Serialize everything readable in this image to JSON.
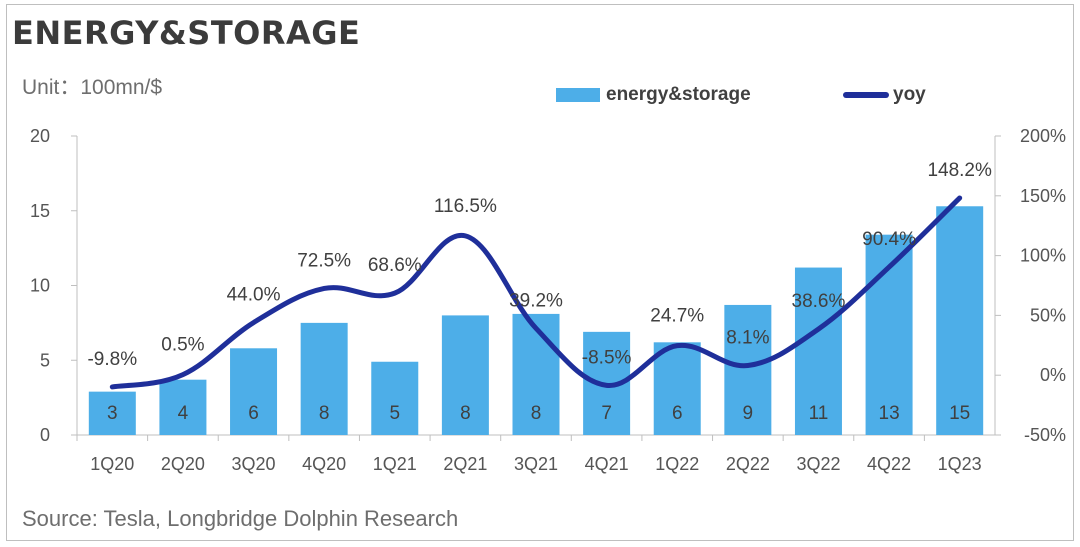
{
  "title": "ENERGY&STORAGE",
  "unit_label": "Unit：100mn/$",
  "source": "Source: Tesla, Longbridge Dolphin Research",
  "legend": {
    "bar": "energy&storage",
    "line": "yoy"
  },
  "colors": {
    "bar": "#4daee8",
    "line": "#1f2f9a",
    "axis": "#bfbfbf",
    "text": "#404040"
  },
  "chart_data": {
    "type": "bar",
    "categories": [
      "1Q20",
      "2Q20",
      "3Q20",
      "4Q20",
      "1Q21",
      "2Q21",
      "3Q21",
      "4Q21",
      "1Q22",
      "2Q22",
      "3Q22",
      "4Q22",
      "1Q23"
    ],
    "series": [
      {
        "name": "energy&storage",
        "type": "bar",
        "axis": "left",
        "values": [
          2.9,
          3.7,
          5.8,
          7.5,
          4.9,
          8.0,
          8.1,
          6.9,
          6.2,
          8.7,
          11.2,
          13.4,
          15.3
        ],
        "labels": [
          "3",
          "4",
          "6",
          "8",
          "5",
          "8",
          "8",
          "7",
          "6",
          "9",
          "11",
          "13",
          "15"
        ]
      },
      {
        "name": "yoy",
        "type": "line",
        "axis": "right",
        "values": [
          -9.8,
          0.5,
          44.0,
          72.5,
          68.6,
          116.5,
          39.2,
          -8.5,
          24.7,
          8.1,
          38.6,
          90.4,
          148.2
        ],
        "labels": [
          "-9.8%",
          "0.5%",
          "44.0%",
          "72.5%",
          "68.6%",
          "116.5%",
          "39.2%",
          "-8.5%",
          "24.7%",
          "8.1%",
          "38.6%",
          "90.4%",
          "148.2%"
        ]
      }
    ],
    "y_left": {
      "ticks": [
        "0",
        "5",
        "10",
        "15",
        "20"
      ],
      "ylim": [
        0,
        20
      ]
    },
    "y_right": {
      "ticks": [
        "-50%",
        "0%",
        "50%",
        "100%",
        "150%",
        "200%"
      ],
      "ylim": [
        -50,
        200
      ]
    },
    "legend_position": "top-right",
    "grid": false
  }
}
